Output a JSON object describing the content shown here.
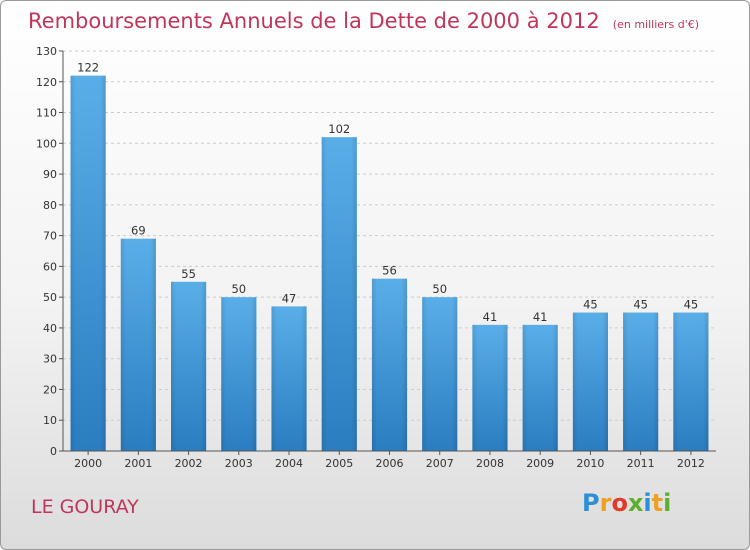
{
  "chart_data": {
    "type": "bar",
    "title": "Remboursements Annuels de la Dette de 2000 à 2012",
    "subtitle": "(en milliers d'€)",
    "categories": [
      "2000",
      "2001",
      "2002",
      "2003",
      "2004",
      "2005",
      "2006",
      "2007",
      "2008",
      "2009",
      "2010",
      "2011",
      "2012"
    ],
    "values": [
      122,
      69,
      55,
      50,
      47,
      102,
      56,
      50,
      41,
      41,
      45,
      45,
      45
    ],
    "ylim": [
      0,
      130
    ],
    "yticks": [
      0,
      10,
      20,
      30,
      40,
      50,
      60,
      70,
      80,
      90,
      100,
      110,
      120,
      130
    ],
    "grid": true,
    "colors": {
      "bar_top": "#5aaee8",
      "bar_bottom": "#2a7dc0",
      "title": "#c0365a"
    }
  },
  "footer": {
    "commune": "LE GOURAY"
  },
  "logo": {
    "letters": [
      "P",
      "r",
      "o",
      "x",
      "i",
      "t",
      "i"
    ],
    "colors": [
      "#2d8fd6",
      "#f0a020",
      "#e03a2a",
      "#5cb030",
      "#2d8fd6",
      "#f0a020",
      "#5cb030"
    ]
  }
}
